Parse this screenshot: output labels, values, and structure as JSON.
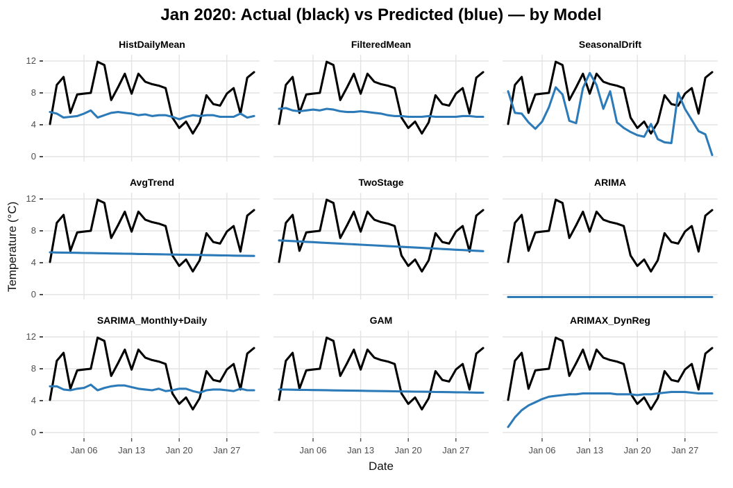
{
  "title": "Jan 2020: Actual (black) vs Predicted (blue) — by Model",
  "colors": {
    "actual": "#000000",
    "predicted": "#2C7BB8",
    "grid": "#E3E3E3",
    "tick": "#4D4D4D"
  },
  "chart_data": {
    "type": "line",
    "title": "Jan 2020: Actual (black) vs Predicted (blue) — by Model",
    "xlabel": "Date",
    "ylabel": "Temperature (°C)",
    "grid": true,
    "legend_position": "none",
    "facet_layout": [
      3,
      3
    ],
    "x_days_range": [
      1,
      31
    ],
    "x_tick_days": [
      6,
      13,
      20,
      27
    ],
    "x_tick_labels": [
      "Jan 06",
      "Jan 13",
      "Jan 20",
      "Jan 27"
    ],
    "y_ticks": [
      12,
      8,
      4,
      0
    ],
    "ylim": [
      -0.8,
      12.8
    ],
    "actual_series_name": "Actual",
    "predicted_series_name": "Predicted",
    "actual": [
      4.1,
      9.0,
      10.0,
      5.5,
      7.8,
      7.9,
      8.0,
      11.9,
      11.5,
      7.1,
      8.7,
      10.4,
      7.9,
      10.4,
      9.4,
      9.1,
      8.9,
      8.6,
      4.9,
      3.6,
      4.4,
      2.9,
      4.3,
      7.7,
      6.6,
      6.4,
      7.9,
      8.6,
      5.4,
      9.9,
      10.6
    ],
    "facets": [
      {
        "model": "HistDailyMean",
        "predicted": [
          5.6,
          5.4,
          4.9,
          5.0,
          5.1,
          5.4,
          5.8,
          4.9,
          5.2,
          5.5,
          5.6,
          5.5,
          5.4,
          5.2,
          5.3,
          5.1,
          5.2,
          5.2,
          5.0,
          4.7,
          5.0,
          5.2,
          5.1,
          5.2,
          5.2,
          5.0,
          5.0,
          5.0,
          5.4,
          4.9,
          5.1
        ]
      },
      {
        "model": "FilteredMean",
        "predicted": [
          6.0,
          6.1,
          5.8,
          5.7,
          5.8,
          5.9,
          5.8,
          6.0,
          5.9,
          5.7,
          5.6,
          5.6,
          5.7,
          5.6,
          5.5,
          5.4,
          5.2,
          5.1,
          5.1,
          5.0,
          5.0,
          5.0,
          5.1,
          5.0,
          5.0,
          5.0,
          5.0,
          5.1,
          5.1,
          5.0,
          5.0
        ]
      },
      {
        "model": "SeasonalDrift",
        "predicted": [
          8.2,
          5.5,
          5.4,
          4.3,
          3.5,
          4.4,
          6.2,
          8.7,
          7.8,
          4.5,
          4.2,
          8.6,
          10.5,
          9.0,
          6.0,
          8.2,
          4.3,
          3.6,
          3.1,
          2.7,
          2.5,
          4.1,
          2.2,
          1.8,
          1.7,
          8.0,
          6.0,
          4.6,
          3.2,
          2.8,
          0.2
        ]
      },
      {
        "model": "AvgTrend",
        "predicted": [
          5.3,
          5.28,
          5.27,
          5.25,
          5.24,
          5.22,
          5.21,
          5.19,
          5.18,
          5.16,
          5.15,
          5.13,
          5.12,
          5.1,
          5.09,
          5.07,
          5.06,
          5.04,
          5.03,
          5.01,
          5.0,
          4.98,
          4.97,
          4.95,
          4.94,
          4.92,
          4.91,
          4.89,
          4.88,
          4.86,
          4.85
        ]
      },
      {
        "model": "TwoStage",
        "predicted": [
          6.8,
          6.76,
          6.71,
          6.67,
          6.62,
          6.58,
          6.53,
          6.49,
          6.44,
          6.4,
          6.35,
          6.31,
          6.26,
          6.22,
          6.17,
          6.13,
          6.08,
          6.04,
          5.99,
          5.95,
          5.9,
          5.86,
          5.81,
          5.77,
          5.72,
          5.68,
          5.63,
          5.59,
          5.54,
          5.5,
          5.45
        ]
      },
      {
        "model": "ARIMA",
        "predicted": [
          -0.3,
          -0.3,
          -0.3,
          -0.3,
          -0.3,
          -0.3,
          -0.3,
          -0.3,
          -0.3,
          -0.3,
          -0.3,
          -0.3,
          -0.3,
          -0.3,
          -0.3,
          -0.3,
          -0.3,
          -0.3,
          -0.3,
          -0.3,
          -0.3,
          -0.3,
          -0.3,
          -0.3,
          -0.3,
          -0.3,
          -0.3,
          -0.3,
          -0.3,
          -0.3,
          -0.3
        ]
      },
      {
        "model": "SARIMA_Monthly+Daily",
        "predicted": [
          5.8,
          5.8,
          5.4,
          5.3,
          5.5,
          5.6,
          6.0,
          5.3,
          5.6,
          5.8,
          5.9,
          5.9,
          5.7,
          5.5,
          5.4,
          5.3,
          5.5,
          5.2,
          5.3,
          5.5,
          5.5,
          5.2,
          5.0,
          5.3,
          5.4,
          5.4,
          5.3,
          5.2,
          5.5,
          5.3,
          5.3
        ]
      },
      {
        "model": "GAM",
        "predicted": [
          5.4,
          5.39,
          5.37,
          5.36,
          5.35,
          5.33,
          5.32,
          5.31,
          5.29,
          5.28,
          5.27,
          5.25,
          5.24,
          5.23,
          5.21,
          5.2,
          5.19,
          5.17,
          5.16,
          5.15,
          5.13,
          5.12,
          5.11,
          5.09,
          5.08,
          5.07,
          5.05,
          5.04,
          5.03,
          5.01,
          5.0
        ]
      },
      {
        "model": "ARIMAX_DynReg",
        "predicted": [
          0.7,
          1.9,
          2.8,
          3.4,
          3.8,
          4.2,
          4.5,
          4.6,
          4.7,
          4.8,
          4.8,
          4.9,
          4.9,
          4.9,
          4.9,
          4.9,
          4.8,
          4.8,
          4.8,
          4.7,
          4.8,
          4.8,
          4.9,
          5.0,
          5.1,
          5.1,
          5.1,
          5.0,
          4.9,
          4.9,
          4.9
        ]
      }
    ]
  }
}
